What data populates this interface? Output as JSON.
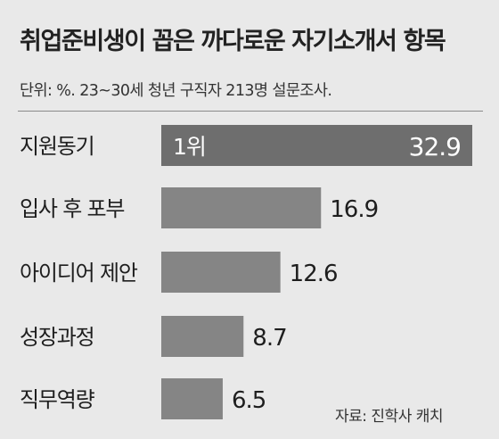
{
  "chart_data": {
    "type": "bar",
    "orientation": "horizontal",
    "title": "취업준비생이 꼽은 까다로운 자기소개서 항목",
    "subtitle": "단위: %. 23~30세 청년 구직자 213명 설문조사.",
    "categories": [
      "지원동기",
      "입사 후 포부",
      "아이디어 제안",
      "성장과정",
      "직무역량"
    ],
    "values": [
      32.9,
      16.9,
      12.6,
      8.7,
      6.5
    ],
    "value_labels": [
      "32.9",
      "16.9",
      "12.6",
      "8.7",
      "6.5"
    ],
    "rank_label": "1위",
    "source": "자료: 진학사 캐치",
    "colors": {
      "bar": "#858585",
      "top_bar": "#6e6e6e",
      "background": "#e9e9e9",
      "text": "#1e1e1e",
      "text_on_bar": "#ffffff"
    }
  }
}
